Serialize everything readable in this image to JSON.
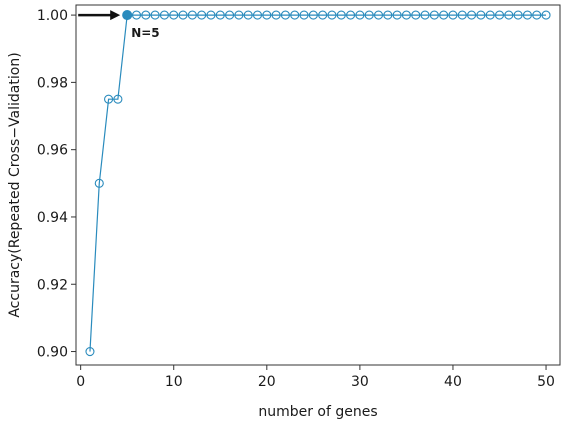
{
  "chart_data": {
    "type": "line",
    "title": "",
    "xlabel": "number of genes",
    "ylabel": "Accuracy(Repeated Cross−Validation)",
    "xlim": [
      -0.5,
      51.5
    ],
    "ylim": [
      0.896,
      1.003
    ],
    "x_ticks": [
      0,
      10,
      20,
      30,
      40,
      50
    ],
    "y_ticks": [
      0.9,
      0.92,
      0.94,
      0.96,
      0.98,
      1.0
    ],
    "x_tick_labels": [
      "0",
      "10",
      "20",
      "30",
      "40",
      "50"
    ],
    "y_tick_labels": [
      "0.90",
      "0.92",
      "0.94",
      "0.96",
      "0.98",
      "1.00"
    ],
    "grid": false,
    "line_color": "#2a8bbd",
    "series": [
      {
        "x": [
          1,
          2,
          3,
          4,
          5,
          6,
          7,
          8,
          9,
          10,
          11,
          12,
          13,
          14,
          15,
          16,
          17,
          18,
          19,
          20,
          21,
          22,
          23,
          24,
          25,
          26,
          27,
          28,
          29,
          30,
          31,
          32,
          33,
          34,
          35,
          36,
          37,
          38,
          39,
          40,
          41,
          42,
          43,
          44,
          45,
          46,
          47,
          48,
          49,
          50
        ],
        "values": [
          0.9,
          0.95,
          0.975,
          0.975,
          1.0,
          1.0,
          1.0,
          1.0,
          1.0,
          1.0,
          1.0,
          1.0,
          1.0,
          1.0,
          1.0,
          1.0,
          1.0,
          1.0,
          1.0,
          1.0,
          1.0,
          1.0,
          1.0,
          1.0,
          1.0,
          1.0,
          1.0,
          1.0,
          1.0,
          1.0,
          1.0,
          1.0,
          1.0,
          1.0,
          1.0,
          1.0,
          1.0,
          1.0,
          1.0,
          1.0,
          1.0,
          1.0,
          1.0,
          1.0,
          1.0,
          1.0,
          1.0,
          1.0,
          1.0,
          1.0
        ],
        "highlight_x": 5
      }
    ],
    "annotation": {
      "text": "N=5",
      "x": 5,
      "y": 1.0,
      "arrow": true
    }
  }
}
